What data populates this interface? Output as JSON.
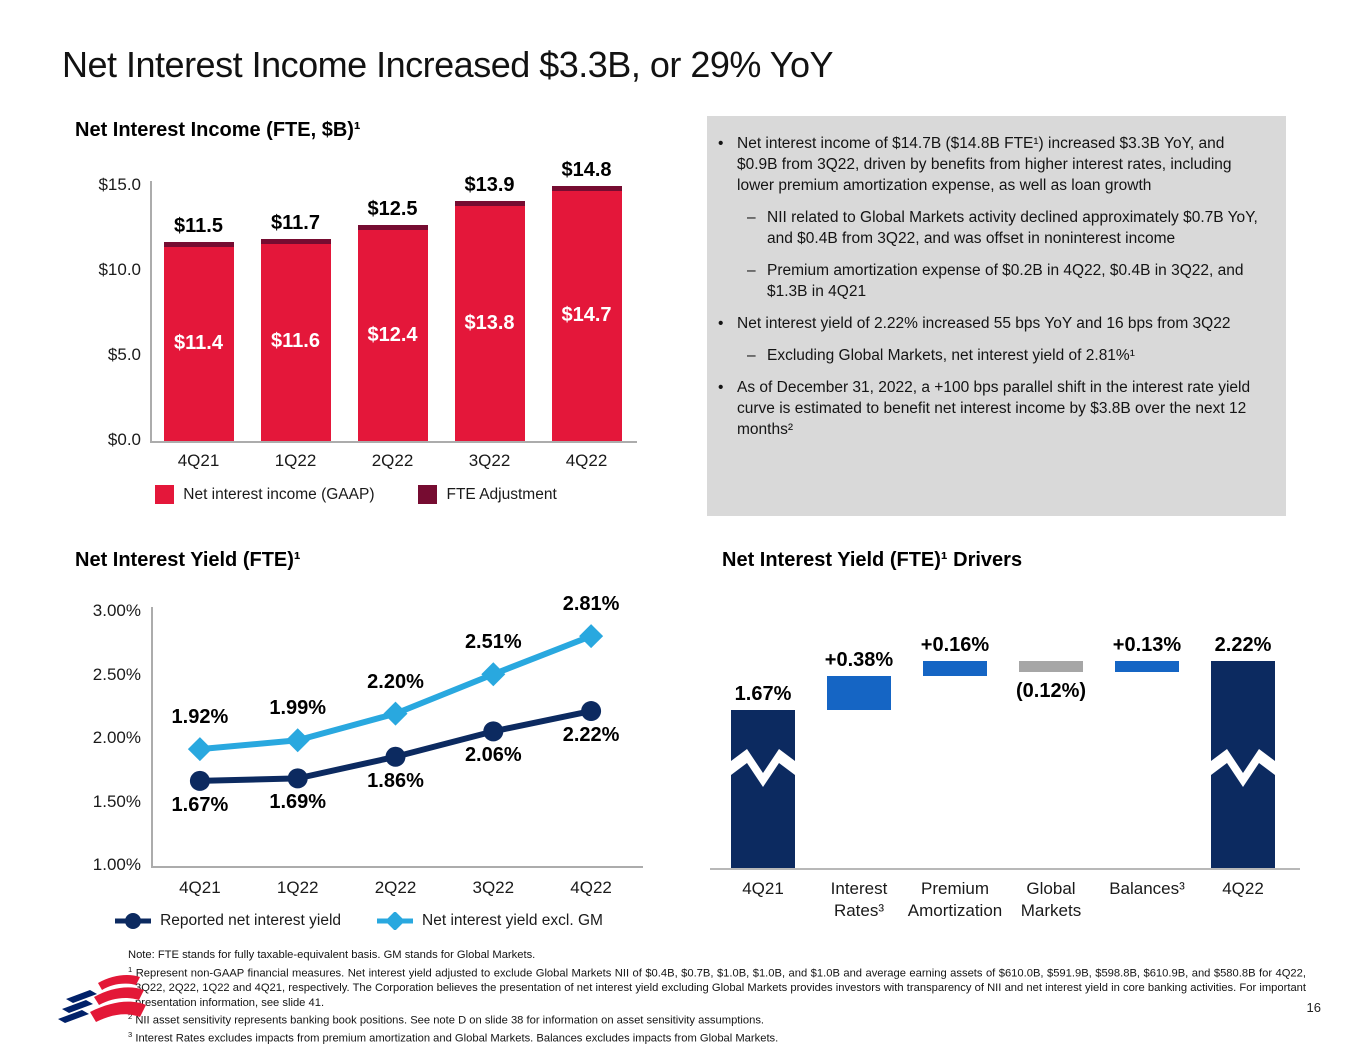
{
  "page": {
    "title": "Net Interest Income Increased $3.3B, or 29% YoY",
    "page_number": "16"
  },
  "sections": {
    "nii_heading": "Net Interest Income (FTE, $B)¹",
    "niy_heading": "Net Interest Yield (FTE)¹",
    "drivers_heading": "Net Interest Yield (FTE)¹ Drivers"
  },
  "commentary": {
    "items": [
      {
        "level": 1,
        "text": "Net interest income of $14.7B ($14.8B FTE¹) increased $3.3B YoY, and $0.9B from 3Q22, driven by benefits from higher interest rates, including lower premium amortization expense, as well as loan growth"
      },
      {
        "level": 2,
        "text": "NII related to Global Markets activity declined approximately $0.7B YoY, and $0.4B from 3Q22, and was offset in noninterest income"
      },
      {
        "level": 2,
        "text": "Premium amortization expense of $0.2B in 4Q22, $0.4B in 3Q22, and $1.3B in 4Q21"
      },
      {
        "level": 1,
        "text": "Net interest yield of 2.22% increased 55 bps YoY and 16 bps from 3Q22"
      },
      {
        "level": 2,
        "text": "Excluding Global Markets, net interest yield of 2.81%¹"
      },
      {
        "level": 1,
        "text": "As of December 31, 2022, a +100 bps parallel shift in the interest rate yield curve is estimated to benefit net interest income by $3.8B over the next 12 months²"
      }
    ]
  },
  "chart_data": [
    {
      "type": "bar",
      "variant": "stacked",
      "title": "Net Interest Income (FTE, $B)¹",
      "categories": [
        "4Q21",
        "1Q22",
        "2Q22",
        "3Q22",
        "4Q22"
      ],
      "series": [
        {
          "name": "Net interest income (GAAP)",
          "color": "#E4173A",
          "values": [
            11.4,
            11.6,
            12.4,
            13.8,
            14.7
          ],
          "value_labels": [
            "$11.4",
            "$11.6",
            "$12.4",
            "$13.8",
            "$14.7"
          ]
        },
        {
          "name": "FTE Adjustment",
          "color": "#760C31",
          "values": [
            0.1,
            0.1,
            0.1,
            0.1,
            0.1
          ]
        }
      ],
      "total_labels": [
        "$11.5",
        "$11.7",
        "$12.5",
        "$13.9",
        "$14.8"
      ],
      "ylim": [
        0,
        15
      ],
      "yticks": [
        {
          "v": 0,
          "label": "$0.0"
        },
        {
          "v": 5,
          "label": "$5.0"
        },
        {
          "v": 10,
          "label": "$10.0"
        },
        {
          "v": 15,
          "label": "$15.0"
        }
      ],
      "grid": false,
      "legend_position": "bottom"
    },
    {
      "type": "line",
      "title": "Net Interest Yield (FTE)¹",
      "categories": [
        "4Q21",
        "1Q22",
        "2Q22",
        "3Q22",
        "4Q22"
      ],
      "series": [
        {
          "name": "Reported net interest yield",
          "color": "#0C2A60",
          "marker": "circle",
          "values": [
            1.67,
            1.69,
            1.86,
            2.06,
            2.22
          ],
          "value_labels": [
            "1.67%",
            "1.69%",
            "1.86%",
            "2.06%",
            "2.22%"
          ]
        },
        {
          "name": "Net interest yield excl. GM",
          "color": "#29A8DF",
          "marker": "diamond",
          "values": [
            1.92,
            1.99,
            2.2,
            2.51,
            2.81
          ],
          "value_labels": [
            "1.92%",
            "1.99%",
            "2.20%",
            "2.51%",
            "2.81%"
          ]
        }
      ],
      "ylim": [
        1,
        3
      ],
      "yticks": [
        {
          "v": 3,
          "label": "3.00%"
        },
        {
          "v": 2.5,
          "label": "2.50%"
        },
        {
          "v": 2,
          "label": "2.00%"
        },
        {
          "v": 1.5,
          "label": "1.50%"
        },
        {
          "v": 1,
          "label": "1.00%"
        }
      ],
      "grid": false,
      "legend_position": "bottom"
    },
    {
      "type": "waterfall",
      "title": "Net Interest Yield (FTE)¹ Drivers",
      "steps": [
        {
          "label": "4Q21",
          "type": "total",
          "value": 1.67,
          "display": "1.67%"
        },
        {
          "label": "Interest\nRates³",
          "type": "increase",
          "value": 0.38,
          "display": "+0.38%"
        },
        {
          "label": "Premium\nAmortization",
          "type": "increase",
          "value": 0.16,
          "display": "+0.16%"
        },
        {
          "label": "Global\nMarkets",
          "type": "decrease",
          "value": 0.12,
          "display": "(0.12%)"
        },
        {
          "label": "Balances³",
          "type": "increase",
          "value": 0.13,
          "display": "+0.13%"
        },
        {
          "label": "4Q22",
          "type": "total",
          "value": 2.22,
          "display": "2.22%"
        }
      ],
      "colors": {
        "total": "#0C2A60",
        "increase": "#1565C4",
        "decrease": "#A6A6A6"
      },
      "axis_break": true
    }
  ],
  "footnotes": {
    "note": "Note: FTE stands for fully taxable-equivalent basis. GM stands for Global Markets.",
    "items": [
      {
        "sup": "1",
        "text": "Represent non-GAAP financial measures. Net interest yield adjusted to exclude Global Markets NII of $0.4B, $0.7B, $1.0B, $1.0B, and $1.0B and average earning assets of $610.0B, $591.9B, $598.8B, $610.9B, and $580.8B for 4Q22, 3Q22, 2Q22, 1Q22 and 4Q21, respectively. The Corporation believes the presentation of net interest yield excluding Global Markets provides investors with transparency of NII and net interest yield in core banking activities. For important presentation information, see slide 41."
      },
      {
        "sup": "2",
        "text": "NII asset sensitivity represents banking book positions. See note D on slide 38 for information on asset sensitivity assumptions."
      },
      {
        "sup": "3",
        "text": "Interest Rates excludes impacts from premium amortization and Global Markets. Balances excludes impacts from Global Markets."
      }
    ]
  }
}
